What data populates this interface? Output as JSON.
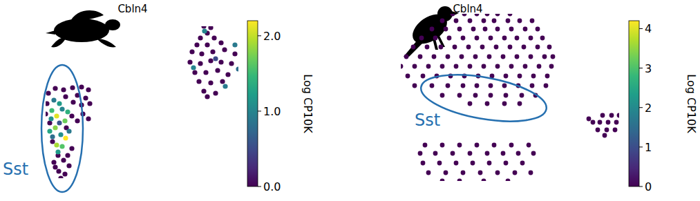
{
  "chart_data": [
    {
      "type": "scatter",
      "title": "Cbln4",
      "annotation": "Sst",
      "tick_labels": false,
      "x": [
        70,
        80,
        92,
        105,
        118,
        128,
        112,
        124,
        130,
        118,
        106,
        95,
        68,
        66,
        72,
        120,
        128,
        112,
        104,
        96,
        84,
        78,
        92,
        100,
        85,
        94,
        80,
        98,
        104,
        76,
        88,
        295,
        305,
        300,
        290,
        310,
        285,
        300,
        320,
        278,
        292,
        308,
        325,
        340,
        275,
        290,
        305,
        320,
        335,
        282,
        298,
        315,
        330,
        288,
        305,
        322,
        295,
        312,
        300,
        296,
        340,
        280,
        345,
        326,
        312,
        78,
        86,
        75,
        82,
        90,
        98,
        72,
        80,
        88,
        95,
        82,
        76,
        90,
        86,
        100,
        74,
        94,
        84
      ],
      "y": [
        156,
        163,
        161,
        164,
        165,
        161,
        153,
        149,
        141,
        139,
        143,
        151,
        141,
        126,
        113,
        126,
        119,
        116,
        123,
        106,
        66,
        56,
        59,
        51,
        43,
        39,
        49,
        66,
        76,
        86,
        33,
        253,
        251,
        243,
        236,
        236,
        226,
        226,
        229,
        216,
        213,
        216,
        219,
        213,
        201,
        199,
        203,
        201,
        199,
        186,
        186,
        189,
        183,
        173,
        171,
        173,
        159,
        156,
        151,
        246,
        226,
        193,
        191,
        166,
        206,
        146,
        141,
        131,
        123,
        133,
        129,
        101,
        106,
        96,
        91,
        81,
        93,
        79,
        113,
        101,
        119,
        116,
        71
      ],
      "values": [
        0,
        0,
        0,
        0,
        0,
        0,
        0,
        0,
        0,
        0,
        0,
        0,
        0,
        0,
        0,
        0,
        0,
        0,
        0,
        0,
        0,
        0,
        0,
        0,
        0,
        0,
        0,
        0,
        0,
        0,
        0,
        0,
        0,
        0,
        0,
        0,
        0,
        0,
        0,
        0,
        0,
        0,
        0,
        0,
        0,
        0,
        0,
        0,
        0,
        0,
        0,
        0,
        0,
        0,
        0,
        0,
        0,
        0,
        0,
        1.0,
        0.9,
        1.0,
        0.8,
        0.9,
        0.5,
        0.9,
        1.2,
        1.5,
        2.1,
        1.0,
        1.4,
        1.3,
        1.8,
        1.1,
        2.2,
        1.9,
        0.8,
        1.6,
        0.6,
        0.9,
        1.1,
        1.7,
        1.2
      ],
      "colorbar": {
        "label": "Log CP10K",
        "range": [
          0,
          2.2
        ],
        "ticks": [
          {
            "value": 0,
            "label": "0.0"
          },
          {
            "value": 1,
            "label": "1.0"
          },
          {
            "value": 2,
            "label": "2.0"
          }
        ]
      }
    },
    {
      "type": "scatter",
      "title": "Cbln4",
      "annotation": "Sst",
      "tick_labels": false,
      "x": [
        655,
        672,
        690,
        705,
        720,
        738,
        640,
        660,
        680,
        700,
        715,
        735,
        752,
        770,
        625,
        645,
        665,
        685,
        702,
        720,
        740,
        760,
        778,
        610,
        630,
        650,
        670,
        690,
        710,
        730,
        748,
        768,
        785,
        598,
        618,
        638,
        658,
        678,
        698,
        718,
        738,
        758,
        778,
        795,
        588,
        608,
        628,
        648,
        668,
        688,
        708,
        728,
        748,
        768,
        788,
        800,
        580,
        600,
        620,
        640,
        660,
        680,
        700,
        720,
        740,
        760,
        780,
        798,
        590,
        612,
        632,
        652,
        672,
        692,
        712,
        732,
        752,
        772,
        792,
        600,
        625,
        648,
        670,
        690,
        710,
        730,
        750,
        770,
        790,
        640,
        665,
        688,
        710,
        732,
        755,
        775,
        680,
        705,
        730,
        752,
        615,
        640,
        665,
        690,
        715,
        740,
        765,
        608,
        630,
        655,
        680,
        705,
        728,
        750,
        772,
        612,
        636,
        660,
        684,
        708,
        732,
        756,
        620,
        645,
        670,
        695,
        720,
        745,
        768,
        640,
        665,
        700,
        735,
        872,
        885,
        896,
        858,
        868,
        880,
        892,
        865,
        878,
        890,
        875,
        852
      ],
      "y": [
        271,
        271,
        271,
        271,
        271,
        271,
        261,
        261,
        261,
        261,
        261,
        261,
        261,
        261,
        249,
        249,
        249,
        249,
        249,
        249,
        249,
        249,
        249,
        236,
        236,
        236,
        236,
        236,
        236,
        236,
        236,
        236,
        236,
        223,
        223,
        223,
        223,
        223,
        223,
        223,
        223,
        223,
        223,
        223,
        209,
        209,
        209,
        209,
        209,
        209,
        209,
        209,
        209,
        209,
        209,
        209,
        195,
        195,
        195,
        195,
        195,
        195,
        195,
        195,
        195,
        195,
        195,
        195,
        181,
        181,
        181,
        181,
        181,
        181,
        181,
        181,
        181,
        181,
        181,
        167,
        167,
        167,
        167,
        167,
        167,
        167,
        167,
        167,
        167,
        153,
        153,
        153,
        153,
        153,
        153,
        153,
        141,
        141,
        141,
        141,
        81,
        81,
        81,
        81,
        81,
        81,
        81,
        69,
        69,
        69,
        69,
        69,
        69,
        69,
        69,
        55,
        55,
        55,
        55,
        55,
        55,
        55,
        41,
        41,
        41,
        41,
        41,
        41,
        41,
        29,
        29,
        29,
        29,
        124,
        124,
        124,
        114,
        114,
        114,
        114,
        103,
        103,
        103,
        95,
        119
      ],
      "values": [
        0,
        0,
        0,
        0,
        0,
        0,
        0,
        0,
        0,
        0,
        0,
        0,
        0,
        0,
        0,
        0,
        0,
        0,
        0,
        0,
        0,
        0,
        0,
        0,
        0,
        0,
        0,
        0,
        0,
        0,
        0,
        0,
        0,
        0,
        0,
        0,
        0,
        0,
        0,
        0,
        0,
        0,
        0,
        0,
        0,
        0,
        0,
        0,
        0,
        0,
        0,
        0,
        0,
        0,
        0,
        0,
        0,
        0,
        0,
        0,
        0,
        0,
        0,
        0,
        0,
        0,
        0,
        0,
        0,
        0,
        0,
        0,
        0,
        0,
        0,
        0,
        0,
        0,
        0,
        0,
        0,
        0,
        0,
        0,
        0,
        0,
        0,
        0,
        0,
        0,
        0,
        0,
        0,
        0,
        0,
        0,
        0,
        0,
        0,
        0,
        0,
        0,
        0,
        0,
        0,
        0,
        0,
        0,
        0,
        0,
        0,
        0,
        0,
        0,
        0,
        0,
        0,
        0,
        0,
        0,
        0,
        0,
        0,
        0,
        0,
        0,
        0,
        0,
        0,
        0,
        0,
        0,
        0,
        0,
        0,
        0,
        0,
        0,
        0,
        0,
        0,
        0,
        0,
        0,
        0
      ],
      "colorbar": {
        "label": "Log CP10K",
        "range": [
          0,
          4.2
        ],
        "ticks": [
          0,
          1,
          2,
          3,
          4
        ]
      }
    }
  ]
}
